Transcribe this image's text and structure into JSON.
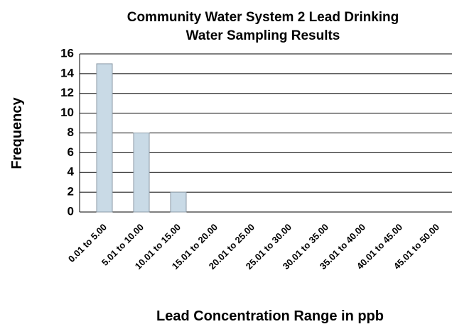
{
  "chart_data": {
    "type": "bar",
    "title": [
      "Community Water System 2 Lead Drinking",
      "Water Sampling Results"
    ],
    "x_label": "Lead Concentration Range in ppb",
    "y_label": "Frequency",
    "categories": [
      "0.01 to 5.00",
      "5.01 to 10.00",
      "10.01 to 15.00",
      "15.01 to 20.00",
      "20.01 to 25.00",
      "25.01 to 30.00",
      "30.01 to 35.00",
      "35.01 to 40.00",
      "40.01 to 45.00",
      "45.01 to 50.00"
    ],
    "values": [
      15,
      8,
      2,
      0,
      0,
      0,
      0,
      0,
      0,
      0
    ],
    "color": "#c9dae6",
    "ylim": [
      0,
      16
    ],
    "yticks": [
      0,
      2,
      4,
      6,
      8,
      10,
      12,
      14,
      16
    ],
    "grid": true
  }
}
